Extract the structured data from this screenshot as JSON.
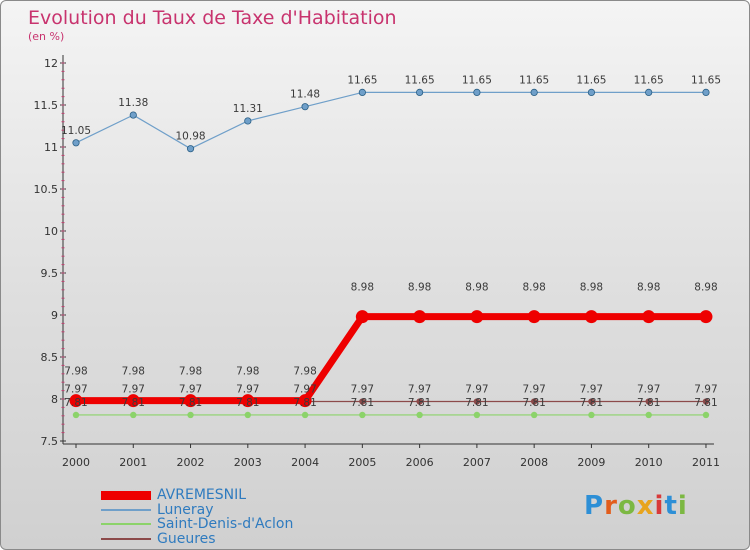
{
  "title": "Evolution du Taux de Taxe d'Habitation",
  "subtitle": "(en %)",
  "brand": {
    "letters": [
      "P",
      "r",
      "o",
      "x",
      "i",
      "t",
      "i"
    ],
    "colors": [
      "#2d8fd6",
      "#e25d1c",
      "#7cb842",
      "#e8a41d",
      "#d83a3a",
      "#2d8fd6",
      "#7cb842"
    ]
  },
  "chart_data": {
    "type": "line",
    "categories": [
      "2000",
      "2001",
      "2002",
      "2003",
      "2004",
      "2005",
      "2006",
      "2007",
      "2008",
      "2009",
      "2010",
      "2011"
    ],
    "ylim": [
      7.5,
      12
    ],
    "y_ticks": [
      "7.5",
      "8",
      "8.5",
      "9",
      "9.5",
      "10",
      "10.5",
      "11",
      "11.5",
      "12"
    ],
    "grid": false,
    "legend_position": "bottom-left",
    "series": [
      {
        "name": "AVREMESNIL",
        "color": "#ee0000",
        "width": 7,
        "values": [
          7.98,
          7.98,
          7.98,
          7.98,
          7.98,
          8.98,
          8.98,
          8.98,
          8.98,
          8.98,
          8.98,
          8.98
        ],
        "labels": [
          "7.98",
          "7.98",
          "7.98",
          "7.98",
          "7.98",
          "8.98",
          "8.98",
          "8.98",
          "8.98",
          "8.98",
          "8.98",
          "8.98"
        ]
      },
      {
        "name": "Luneray",
        "color": "#6f9fc9",
        "width": 1.2,
        "values": [
          11.05,
          11.38,
          10.98,
          11.31,
          11.48,
          11.65,
          11.65,
          11.65,
          11.65,
          11.65,
          11.65,
          11.65
        ],
        "labels": [
          "11.05",
          "11.38",
          "10.98",
          "11.31",
          "11.48",
          "11.65",
          "11.65",
          "11.65",
          "11.65",
          "11.65",
          "11.65",
          "11.65"
        ]
      },
      {
        "name": "Saint-Denis-d'Aclon",
        "color": "#8cd36a",
        "width": 1.2,
        "values": [
          7.81,
          7.81,
          7.81,
          7.81,
          7.81,
          7.81,
          7.81,
          7.81,
          7.81,
          7.81,
          7.81,
          7.81
        ],
        "labels": [
          "7.81",
          "7.81",
          "7.81",
          "7.81",
          "7.81",
          "7.81",
          "7.81",
          "7.81",
          "7.81",
          "7.81",
          "7.81",
          "7.81"
        ]
      },
      {
        "name": "Gueures",
        "color": "#8c4a4a",
        "width": 1.2,
        "values": [
          7.97,
          7.97,
          7.97,
          7.97,
          7.97,
          7.97,
          7.97,
          7.97,
          7.97,
          7.97,
          7.97,
          7.97
        ],
        "labels": [
          "7.97",
          "7.97",
          "7.97",
          "7.97",
          "7.97",
          "7.97",
          "7.97",
          "7.97",
          "7.97",
          "7.97",
          "7.97",
          "7.97"
        ]
      }
    ]
  }
}
